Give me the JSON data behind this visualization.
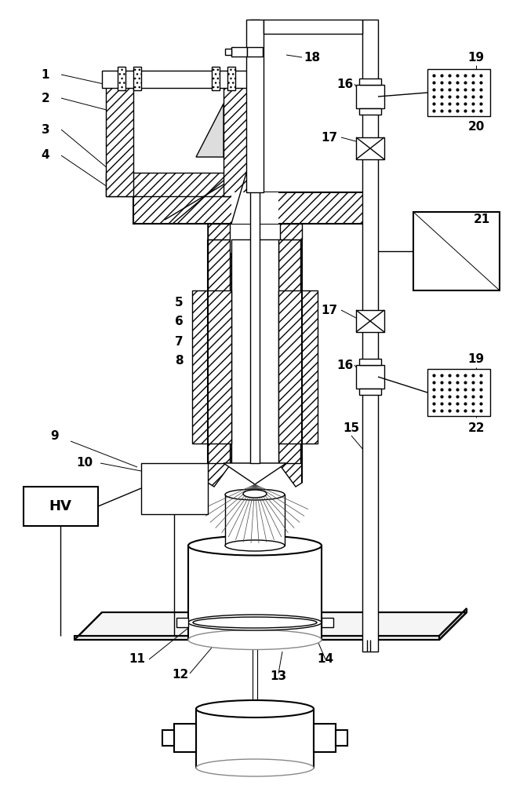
{
  "bg_color": "#ffffff",
  "figsize": [
    6.49,
    10.0
  ],
  "dpi": 100,
  "lw": 1.0,
  "lw2": 1.5,
  "lw3": 0.7,
  "black": "#000000",
  "gray": "#888888",
  "hatch_gray": "#666666"
}
